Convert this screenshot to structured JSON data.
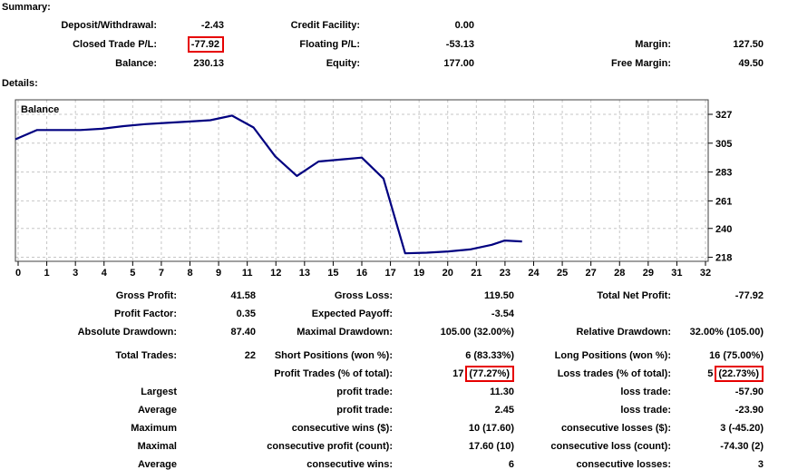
{
  "summary": {
    "title": "Summary:",
    "rows": [
      {
        "l1": "Deposit/Withdrawal:",
        "v1": "-2.43",
        "l2": "Credit Facility:",
        "v2": "0.00",
        "l3": "",
        "v3": ""
      },
      {
        "l1": "Closed Trade P/L:",
        "v1": "-77.92",
        "l2": "Floating P/L:",
        "v2": "-53.13",
        "l3": "Margin:",
        "v3": "127.50"
      },
      {
        "l1": "Balance:",
        "v1": "230.13",
        "l2": "Equity:",
        "v2": "177.00",
        "l3": "Free Margin:",
        "v3": "49.50"
      }
    ]
  },
  "details": {
    "title": "Details:"
  },
  "stats": {
    "rows": [
      {
        "l1": "Gross Profit:",
        "v1": "41.58",
        "l2": "Gross Loss:",
        "v2": "119.50",
        "l3": "Total Net Profit:",
        "v3": "-77.92"
      },
      {
        "l1": "Profit Factor:",
        "v1": "0.35",
        "l2": "Expected Payoff:",
        "v2": "-3.54",
        "l3": "",
        "v3": ""
      },
      {
        "l1": "Absolute Drawdown:",
        "v1": "87.40",
        "l2": "Maximal Drawdown:",
        "v2": "105.00 (32.00%)",
        "l3": "Relative Drawdown:",
        "v3": "32.00% (105.00)"
      },
      {
        "l1": "Total Trades:",
        "v1": "22",
        "l2": "Short Positions (won %):",
        "v2": "6 (83.33%)",
        "l3": "Long Positions (won %):",
        "v3": "16 (75.00%)"
      },
      {
        "l1": "",
        "v1": "",
        "l2": "Profit Trades (% of total):",
        "v2_pre": "17",
        "v2_box": "(77.27%)",
        "l3": "Loss trades (% of total):",
        "v3_pre": "5",
        "v3_box": "(22.73%)"
      },
      {
        "l1": "Largest",
        "v1": "",
        "l2": "profit trade:",
        "v2": "11.30",
        "l3": "loss trade:",
        "v3": "-57.90"
      },
      {
        "l1": "Average",
        "v1": "",
        "l2": "profit trade:",
        "v2": "2.45",
        "l3": "loss trade:",
        "v3": "-23.90"
      },
      {
        "l1": "Maximum",
        "v1": "",
        "l2": "consecutive wins ($):",
        "v2": "10 (17.60)",
        "l3": "consecutive losses ($):",
        "v3": "3 (-45.20)"
      },
      {
        "l1": "Maximal",
        "v1": "",
        "l2": "consecutive profit (count):",
        "v2": "17.60 (10)",
        "l3": "consecutive loss (count):",
        "v3": "-74.30 (2)"
      },
      {
        "l1": "Average",
        "v1": "",
        "l2": "consecutive wins:",
        "v2": "6",
        "l3": "consecutive losses:",
        "v3": "3"
      }
    ]
  },
  "colors": {
    "highlight_border": "#e60000",
    "line_color": "#000080",
    "grid_color": "#c6c6c6",
    "border_color": "#404040",
    "text_color": "#000000"
  },
  "chart_data": {
    "type": "line",
    "title": "Balance",
    "xlabel": "",
    "ylabel": "",
    "x_index_max": 32,
    "x_tick_labels": [
      "0",
      "1",
      "3",
      "4",
      "5",
      "7",
      "8",
      "9",
      "11",
      "12",
      "13",
      "15",
      "16",
      "17",
      "19",
      "20",
      "21",
      "23",
      "24",
      "25",
      "27",
      "28",
      "29",
      "31",
      "32"
    ],
    "y_ticks": [
      327,
      305,
      283,
      261,
      240,
      218
    ],
    "grid": "dashed",
    "legend_position": "top-left-inside",
    "series": [
      {
        "name": "Balance",
        "x": [
          0,
          1,
          2,
          3,
          4,
          5,
          6,
          7,
          8,
          9,
          10,
          11,
          12,
          13,
          14,
          15,
          16,
          17,
          18,
          19,
          20,
          21,
          22,
          22.6,
          23.4
        ],
        "values": [
          308,
          315,
          315,
          315,
          316,
          318,
          319.5,
          320.5,
          321.5,
          322.5,
          326,
          317,
          295,
          280,
          291,
          292.5,
          294,
          278,
          221,
          221.5,
          222.5,
          224,
          227.5,
          230.8,
          230.1
        ]
      }
    ]
  }
}
